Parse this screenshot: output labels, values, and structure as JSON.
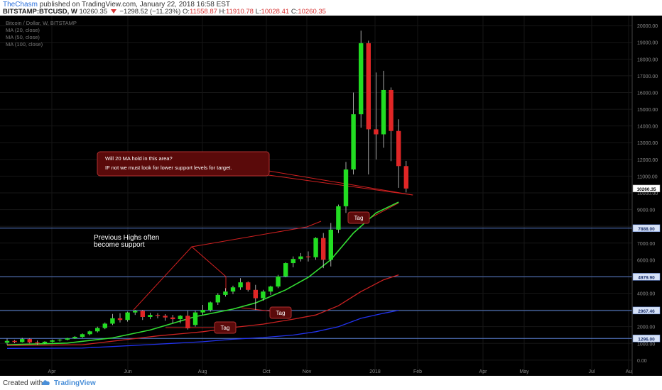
{
  "header": {
    "author": "TheChasm",
    "published_text": "published on TradingView.com, January 22, 2018 16:58 EST",
    "symbol": "BITSTAMP:BTCUSD, W",
    "price": "10260.35",
    "change": "−1298.52 (−11.23%)",
    "o_label": "O:",
    "o_value": "11558.87",
    "h_label": "H:",
    "h_value": "11910.78",
    "l_label": "L:",
    "l_value": "10028.41",
    "c_label": "C:",
    "c_value": "10260.35"
  },
  "legend": {
    "title": "Bitcoin / Dollar, W, BITSTAMP",
    "ma20": "MA (20, close)",
    "ma50": "MA (50, close)",
    "ma100": "MA (100, close)"
  },
  "annotations": {
    "callout_line1": "Will 20 MA hold in this area?",
    "callout_line2": "IF not we must look for lower support levels for target.",
    "prev_highs_line1": "Previous Highs often",
    "prev_highs_line2": "become support",
    "tag1": "Tag",
    "tag2": "Tag",
    "tag3": "Tag"
  },
  "footer": {
    "created_with": "Created with",
    "brand": "TradingView"
  },
  "colors": {
    "background": "#000000",
    "up": "#22dd22",
    "down": "#e02626",
    "ma20": "#33dd33",
    "ma50": "#cc2222",
    "ma100": "#2233ee",
    "hline": "#5a7fd0",
    "callout_bg": "#5a0a0a",
    "callout_border": "#b03030"
  },
  "chart_data": {
    "type": "candlestick",
    "title": "Bitcoin / Dollar, W, BITSTAMP",
    "x_tick_labels": [
      "Apr",
      "Jun",
      "Aug",
      "Oct",
      "Nov",
      "2018",
      "Feb",
      "Apr",
      "May",
      "Jul",
      "Au"
    ],
    "y_tick_labels": [
      "0.00",
      "1000.00",
      "2000.00",
      "3000.00",
      "4000.00",
      "5000.00",
      "6000.00",
      "7000.00",
      "8000.00",
      "9000.00",
      "10000.00",
      "11000.00",
      "12000.00",
      "13000.00",
      "14000.00",
      "15000.00",
      "16000.00",
      "17000.00",
      "18000.00",
      "19000.00",
      "20000.00"
    ],
    "ylim": [
      -600,
      20600
    ],
    "price_badges": [
      "10260.35",
      "7888.00",
      "4979.90",
      "2967.46",
      "1296.00"
    ],
    "horizontal_levels": [
      7888,
      4979.9,
      2967.46,
      1296
    ],
    "candles": [
      {
        "o": 1040,
        "h": 1280,
        "l": 920,
        "c": 1150
      },
      {
        "o": 1150,
        "h": 1200,
        "l": 1010,
        "c": 1080
      },
      {
        "o": 1080,
        "h": 1330,
        "l": 1050,
        "c": 1260
      },
      {
        "o": 1260,
        "h": 1300,
        "l": 1000,
        "c": 1060
      },
      {
        "o": 1060,
        "h": 1170,
        "l": 920,
        "c": 1000
      },
      {
        "o": 1000,
        "h": 1130,
        "l": 960,
        "c": 1100
      },
      {
        "o": 1100,
        "h": 1230,
        "l": 1060,
        "c": 1180
      },
      {
        "o": 1180,
        "h": 1260,
        "l": 1110,
        "c": 1220
      },
      {
        "o": 1220,
        "h": 1330,
        "l": 1180,
        "c": 1300
      },
      {
        "o": 1300,
        "h": 1440,
        "l": 1270,
        "c": 1390
      },
      {
        "o": 1390,
        "h": 1600,
        "l": 1330,
        "c": 1550
      },
      {
        "o": 1550,
        "h": 1770,
        "l": 1480,
        "c": 1720
      },
      {
        "o": 1720,
        "h": 2000,
        "l": 1650,
        "c": 1920
      },
      {
        "o": 1920,
        "h": 2250,
        "l": 1850,
        "c": 2180
      },
      {
        "o": 2180,
        "h": 2760,
        "l": 2100,
        "c": 2500
      },
      {
        "o": 2500,
        "h": 2800,
        "l": 2250,
        "c": 2400
      },
      {
        "o": 2400,
        "h": 2900,
        "l": 2300,
        "c": 2850
      },
      {
        "o": 2850,
        "h": 3000,
        "l": 2700,
        "c": 2950
      },
      {
        "o": 2950,
        "h": 3000,
        "l": 2400,
        "c": 2580
      },
      {
        "o": 2580,
        "h": 2830,
        "l": 2450,
        "c": 2700
      },
      {
        "o": 2700,
        "h": 2800,
        "l": 2500,
        "c": 2650
      },
      {
        "o": 2650,
        "h": 2750,
        "l": 2350,
        "c": 2550
      },
      {
        "o": 2550,
        "h": 2700,
        "l": 2200,
        "c": 2450
      },
      {
        "o": 2450,
        "h": 2700,
        "l": 2200,
        "c": 2650
      },
      {
        "o": 2650,
        "h": 2950,
        "l": 1830,
        "c": 1900
      },
      {
        "o": 2100,
        "h": 2950,
        "l": 2000,
        "c": 2850
      },
      {
        "o": 2850,
        "h": 3300,
        "l": 2700,
        "c": 3000
      },
      {
        "o": 3000,
        "h": 3500,
        "l": 2900,
        "c": 3450
      },
      {
        "o": 3450,
        "h": 4000,
        "l": 3300,
        "c": 3900
      },
      {
        "o": 3900,
        "h": 4300,
        "l": 3800,
        "c": 4100
      },
      {
        "o": 4100,
        "h": 4450,
        "l": 3950,
        "c": 4350
      },
      {
        "o": 4350,
        "h": 4900,
        "l": 4200,
        "c": 4650
      },
      {
        "o": 4650,
        "h": 4700,
        "l": 4100,
        "c": 4200
      },
      {
        "o": 4200,
        "h": 4500,
        "l": 3000,
        "c": 3700
      },
      {
        "o": 3700,
        "h": 4200,
        "l": 3550,
        "c": 4100
      },
      {
        "o": 4100,
        "h": 4450,
        "l": 3900,
        "c": 4400
      },
      {
        "o": 4400,
        "h": 5100,
        "l": 4300,
        "c": 5000
      },
      {
        "o": 5000,
        "h": 5850,
        "l": 4950,
        "c": 5800
      },
      {
        "o": 5800,
        "h": 6200,
        "l": 5550,
        "c": 6050
      },
      {
        "o": 6050,
        "h": 6400,
        "l": 5900,
        "c": 6200
      },
      {
        "o": 6200,
        "h": 6500,
        "l": 5900,
        "c": 6150
      },
      {
        "o": 6150,
        "h": 7350,
        "l": 6000,
        "c": 7300
      },
      {
        "o": 7300,
        "h": 7600,
        "l": 5500,
        "c": 6000
      },
      {
        "o": 6000,
        "h": 8200,
        "l": 5600,
        "c": 7800
      },
      {
        "o": 7800,
        "h": 9300,
        "l": 7600,
        "c": 9200
      },
      {
        "o": 9200,
        "h": 11850,
        "l": 8800,
        "c": 11400
      },
      {
        "o": 11400,
        "h": 16000,
        "l": 11100,
        "c": 14700
      },
      {
        "o": 14700,
        "h": 19700,
        "l": 13900,
        "c": 18950
      },
      {
        "o": 18950,
        "h": 19100,
        "l": 11100,
        "c": 13800
      },
      {
        "o": 13800,
        "h": 17200,
        "l": 12000,
        "c": 13500
      },
      {
        "o": 13500,
        "h": 17300,
        "l": 12700,
        "c": 16150
      },
      {
        "o": 16150,
        "h": 16300,
        "l": 11900,
        "c": 13700
      },
      {
        "o": 13700,
        "h": 14400,
        "l": 10300,
        "c": 11600
      },
      {
        "o": 11600,
        "h": 11910,
        "l": 10028,
        "c": 10260
      }
    ],
    "series": [
      {
        "name": "MA (20, close)",
        "points": [
          [
            0,
            920
          ],
          [
            8,
            1020
          ],
          [
            14,
            1330
          ],
          [
            19,
            1800
          ],
          [
            25,
            2600
          ],
          [
            30,
            3050
          ],
          [
            33,
            3420
          ],
          [
            37,
            4200
          ],
          [
            40,
            4950
          ],
          [
            43,
            6000
          ],
          [
            46,
            7600
          ],
          [
            49,
            8800
          ],
          [
            52,
            9450
          ]
        ]
      },
      {
        "name": "MA (50, close)",
        "points": [
          [
            0,
            880
          ],
          [
            10,
            920
          ],
          [
            20,
            1450
          ],
          [
            26,
            1700
          ],
          [
            30,
            1950
          ],
          [
            34,
            2150
          ],
          [
            38,
            2450
          ],
          [
            41,
            2700
          ],
          [
            44,
            3250
          ],
          [
            47,
            4100
          ],
          [
            50,
            4800
          ],
          [
            52,
            5100
          ]
        ]
      },
      {
        "name": "MA (100, close)",
        "points": [
          [
            0,
            700
          ],
          [
            10,
            720
          ],
          [
            20,
            950
          ],
          [
            26,
            1100
          ],
          [
            30,
            1250
          ],
          [
            34,
            1350
          ],
          [
            38,
            1500
          ],
          [
            41,
            1700
          ],
          [
            44,
            2000
          ],
          [
            47,
            2500
          ],
          [
            50,
            2800
          ],
          [
            52,
            2980
          ]
        ]
      }
    ]
  }
}
